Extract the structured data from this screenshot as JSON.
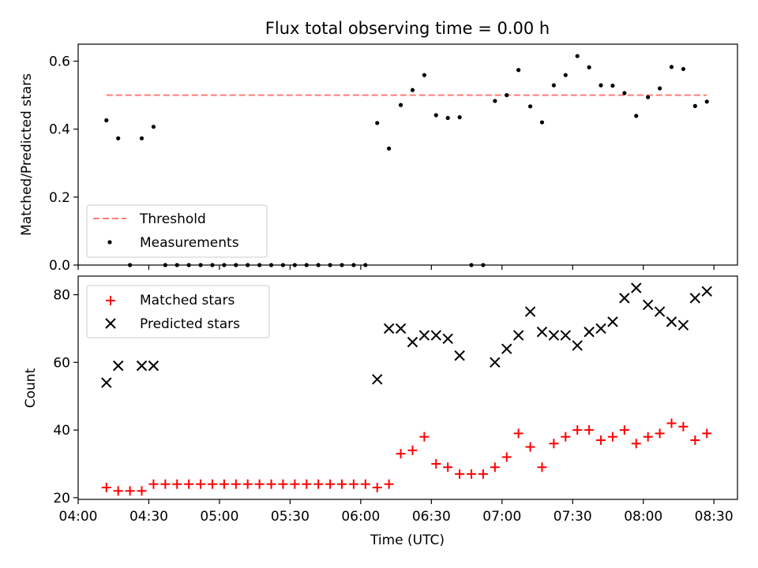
{
  "figure": {
    "title": "Flux total observing time = 0.00 h",
    "xlabel": "Time (UTC)"
  },
  "chart_data": [
    {
      "type": "scatter",
      "panel": "top",
      "ylabel": "Matched/Predicted stars",
      "xlim": [
        "04:00",
        "08:40"
      ],
      "ylim": [
        0,
        0.65
      ],
      "yticks": [
        0.0,
        0.2,
        0.4,
        0.6
      ],
      "ytick_labels": [
        "0.0",
        "0.2",
        "0.4",
        "0.6"
      ],
      "xticks": [
        "04:00",
        "04:30",
        "05:00",
        "05:30",
        "06:00",
        "06:30",
        "07:00",
        "07:30",
        "08:00",
        "08:30"
      ],
      "grid": false,
      "legend": {
        "placement": "lower-left",
        "entries": [
          "Threshold",
          "Measurements"
        ]
      },
      "threshold": {
        "name": "Threshold",
        "y": 0.5,
        "x_range": [
          "04:12",
          "08:27"
        ],
        "color": "#ff7a7a",
        "style": "dashed"
      },
      "series": [
        {
          "name": "Measurements",
          "marker": "dot",
          "color": "#000000",
          "points": [
            [
              "04:12",
              0.426
            ],
            [
              "04:17",
              0.373
            ],
            [
              "04:22",
              0.0
            ],
            [
              "04:27",
              0.373
            ],
            [
              "04:32",
              0.407
            ],
            [
              "04:37",
              0.0
            ],
            [
              "04:42",
              0.0
            ],
            [
              "04:47",
              0.0
            ],
            [
              "04:52",
              0.0
            ],
            [
              "04:57",
              0.0
            ],
            [
              "05:02",
              0.0
            ],
            [
              "05:07",
              0.0
            ],
            [
              "05:12",
              0.0
            ],
            [
              "05:17",
              0.0
            ],
            [
              "05:22",
              0.0
            ],
            [
              "05:27",
              0.0
            ],
            [
              "05:32",
              0.0
            ],
            [
              "05:37",
              0.0
            ],
            [
              "05:42",
              0.0
            ],
            [
              "05:47",
              0.0
            ],
            [
              "05:52",
              0.0
            ],
            [
              "05:57",
              0.0
            ],
            [
              "06:02",
              0.0
            ],
            [
              "06:07",
              0.418
            ],
            [
              "06:12",
              0.343
            ],
            [
              "06:17",
              0.471
            ],
            [
              "06:22",
              0.515
            ],
            [
              "06:27",
              0.559
            ],
            [
              "06:32",
              0.441
            ],
            [
              "06:37",
              0.433
            ],
            [
              "06:42",
              0.435
            ],
            [
              "06:47",
              0.0
            ],
            [
              "06:52",
              0.0
            ],
            [
              "06:57",
              0.483
            ],
            [
              "07:02",
              0.5
            ],
            [
              "07:07",
              0.574
            ],
            [
              "07:12",
              0.467
            ],
            [
              "07:17",
              0.42
            ],
            [
              "07:22",
              0.529
            ],
            [
              "07:27",
              0.559
            ],
            [
              "07:32",
              0.615
            ],
            [
              "07:37",
              0.582
            ],
            [
              "07:42",
              0.529
            ],
            [
              "07:47",
              0.528
            ],
            [
              "07:52",
              0.506
            ],
            [
              "07:57",
              0.439
            ],
            [
              "08:02",
              0.494
            ],
            [
              "08:07",
              0.52
            ],
            [
              "08:12",
              0.583
            ],
            [
              "08:17",
              0.577
            ],
            [
              "08:22",
              0.468
            ],
            [
              "08:27",
              0.481
            ]
          ]
        }
      ]
    },
    {
      "type": "scatter",
      "panel": "bottom",
      "ylabel": "Count",
      "xlabel": "Time (UTC)",
      "xlim": [
        "04:00",
        "08:40"
      ],
      "ylim": [
        19.5,
        85.5
      ],
      "yticks": [
        20,
        40,
        60,
        80
      ],
      "ytick_labels": [
        "20",
        "40",
        "60",
        "80"
      ],
      "xticks": [
        "04:00",
        "04:30",
        "05:00",
        "05:30",
        "06:00",
        "06:30",
        "07:00",
        "07:30",
        "08:00",
        "08:30"
      ],
      "xtick_labels": [
        "04:00",
        "04:30",
        "05:00",
        "05:30",
        "06:00",
        "06:30",
        "07:00",
        "07:30",
        "08:00",
        "08:30"
      ],
      "grid": false,
      "legend": {
        "placement": "top-left",
        "entries": [
          "Matched stars",
          "Predicted stars"
        ]
      },
      "series": [
        {
          "name": "Matched stars",
          "marker": "plus",
          "color": "#ff0000",
          "points": [
            [
              "04:12",
              23
            ],
            [
              "04:17",
              22
            ],
            [
              "04:22",
              22
            ],
            [
              "04:27",
              22
            ],
            [
              "04:32",
              24
            ],
            [
              "04:37",
              24
            ],
            [
              "04:42",
              24
            ],
            [
              "04:47",
              24
            ],
            [
              "04:52",
              24
            ],
            [
              "04:57",
              24
            ],
            [
              "05:02",
              24
            ],
            [
              "05:07",
              24
            ],
            [
              "05:12",
              24
            ],
            [
              "05:17",
              24
            ],
            [
              "05:22",
              24
            ],
            [
              "05:27",
              24
            ],
            [
              "05:32",
              24
            ],
            [
              "05:37",
              24
            ],
            [
              "05:42",
              24
            ],
            [
              "05:47",
              24
            ],
            [
              "05:52",
              24
            ],
            [
              "05:57",
              24
            ],
            [
              "06:02",
              24
            ],
            [
              "06:07",
              23
            ],
            [
              "06:12",
              24
            ],
            [
              "06:17",
              33
            ],
            [
              "06:22",
              34
            ],
            [
              "06:27",
              38
            ],
            [
              "06:32",
              30
            ],
            [
              "06:37",
              29
            ],
            [
              "06:42",
              27
            ],
            [
              "06:47",
              27
            ],
            [
              "06:52",
              27
            ],
            [
              "06:57",
              29
            ],
            [
              "07:02",
              32
            ],
            [
              "07:07",
              39
            ],
            [
              "07:12",
              35
            ],
            [
              "07:17",
              29
            ],
            [
              "07:22",
              36
            ],
            [
              "07:27",
              38
            ],
            [
              "07:32",
              40
            ],
            [
              "07:37",
              40
            ],
            [
              "07:42",
              37
            ],
            [
              "07:47",
              38
            ],
            [
              "07:52",
              40
            ],
            [
              "07:57",
              36
            ],
            [
              "08:02",
              38
            ],
            [
              "08:07",
              39
            ],
            [
              "08:12",
              42
            ],
            [
              "08:17",
              41
            ],
            [
              "08:22",
              37
            ],
            [
              "08:27",
              39
            ]
          ]
        },
        {
          "name": "Predicted stars",
          "marker": "x",
          "color": "#000000",
          "points": [
            [
              "04:12",
              54
            ],
            [
              "04:17",
              59
            ],
            [
              "04:27",
              59
            ],
            [
              "04:32",
              59
            ],
            [
              "06:07",
              55
            ],
            [
              "06:12",
              70
            ],
            [
              "06:17",
              70
            ],
            [
              "06:22",
              66
            ],
            [
              "06:27",
              68
            ],
            [
              "06:32",
              68
            ],
            [
              "06:37",
              67
            ],
            [
              "06:42",
              62
            ],
            [
              "06:57",
              60
            ],
            [
              "07:02",
              64
            ],
            [
              "07:07",
              68
            ],
            [
              "07:12",
              75
            ],
            [
              "07:17",
              69
            ],
            [
              "07:22",
              68
            ],
            [
              "07:27",
              68
            ],
            [
              "07:32",
              65
            ],
            [
              "07:37",
              69
            ],
            [
              "07:42",
              70
            ],
            [
              "07:47",
              72
            ],
            [
              "07:52",
              79
            ],
            [
              "07:57",
              82
            ],
            [
              "08:02",
              77
            ],
            [
              "08:07",
              75
            ],
            [
              "08:12",
              72
            ],
            [
              "08:17",
              71
            ],
            [
              "08:22",
              79
            ],
            [
              "08:27",
              81
            ]
          ]
        }
      ]
    }
  ]
}
